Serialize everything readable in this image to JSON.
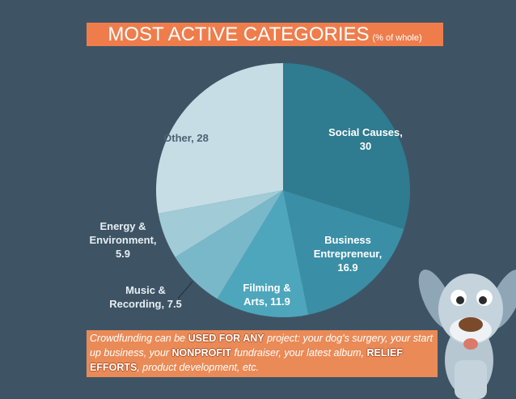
{
  "chart_data": {
    "type": "pie",
    "title": "MOST ACTIVE CATEGORIES",
    "subtitle": "(% of whole)",
    "labels": [
      "Social Causes, 30",
      "Business Entrepreneur, 16.9",
      "Filming & Arts, 11.9",
      "Music & Recording, 7.5",
      "Energy & Environment, 5.9",
      "Other, 28"
    ],
    "values": [
      30,
      16.9,
      11.9,
      7.5,
      5.9,
      28
    ],
    "colors": [
      "#2f7b90",
      "#3a8ea5",
      "#4ea6bc",
      "#79b8c9",
      "#a0cbd7",
      "#c6dde6"
    ]
  },
  "footer": {
    "segments": [
      "Crowdfunding can be ",
      "USED FOR ANY",
      " project: your dog's surgery, your start up business, your ",
      "NONPROFIT",
      " fundraiser, your latest album, ",
      "RELIEF EFFORTS",
      ", product development, etc."
    ]
  }
}
